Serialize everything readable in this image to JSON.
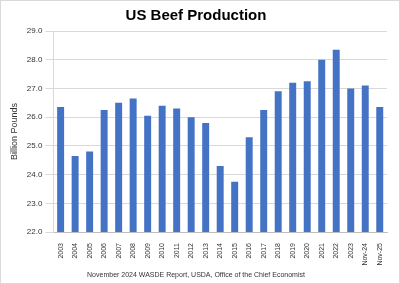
{
  "chart_data": {
    "type": "bar",
    "title": "US Beef Production",
    "y_label": "Billion Pounds",
    "source": "November 2024 WASDE Report, USDA, Office of the Chief Economist",
    "categories": [
      "2003",
      "2004",
      "2005",
      "2006",
      "2007",
      "2008",
      "2009",
      "2010",
      "2011",
      "2012",
      "2013",
      "2014",
      "2015",
      "2016",
      "2017",
      "2018",
      "2019",
      "2020",
      "2021",
      "2022",
      "2023",
      "Nov-24",
      "Nov-25"
    ],
    "values": [
      26.35,
      24.65,
      24.8,
      26.25,
      26.5,
      26.65,
      26.05,
      26.4,
      26.3,
      26.0,
      25.8,
      24.3,
      23.75,
      25.3,
      26.25,
      26.9,
      27.2,
      27.25,
      28.0,
      28.35,
      27.0,
      27.1,
      26.35
    ],
    "color": "#4472c4",
    "ylim": [
      22,
      29
    ],
    "yticks": [
      {
        "value": 22,
        "label": "22.0"
      },
      {
        "value": 23,
        "label": "23.0"
      },
      {
        "value": 24,
        "label": "24.0"
      },
      {
        "value": 25,
        "label": "25.0"
      },
      {
        "value": 26,
        "label": "26.0"
      },
      {
        "value": 27,
        "label": "27.0"
      },
      {
        "value": 28,
        "label": "28.0"
      },
      {
        "value": 29,
        "label": "29.0"
      }
    ],
    "grid": true
  }
}
